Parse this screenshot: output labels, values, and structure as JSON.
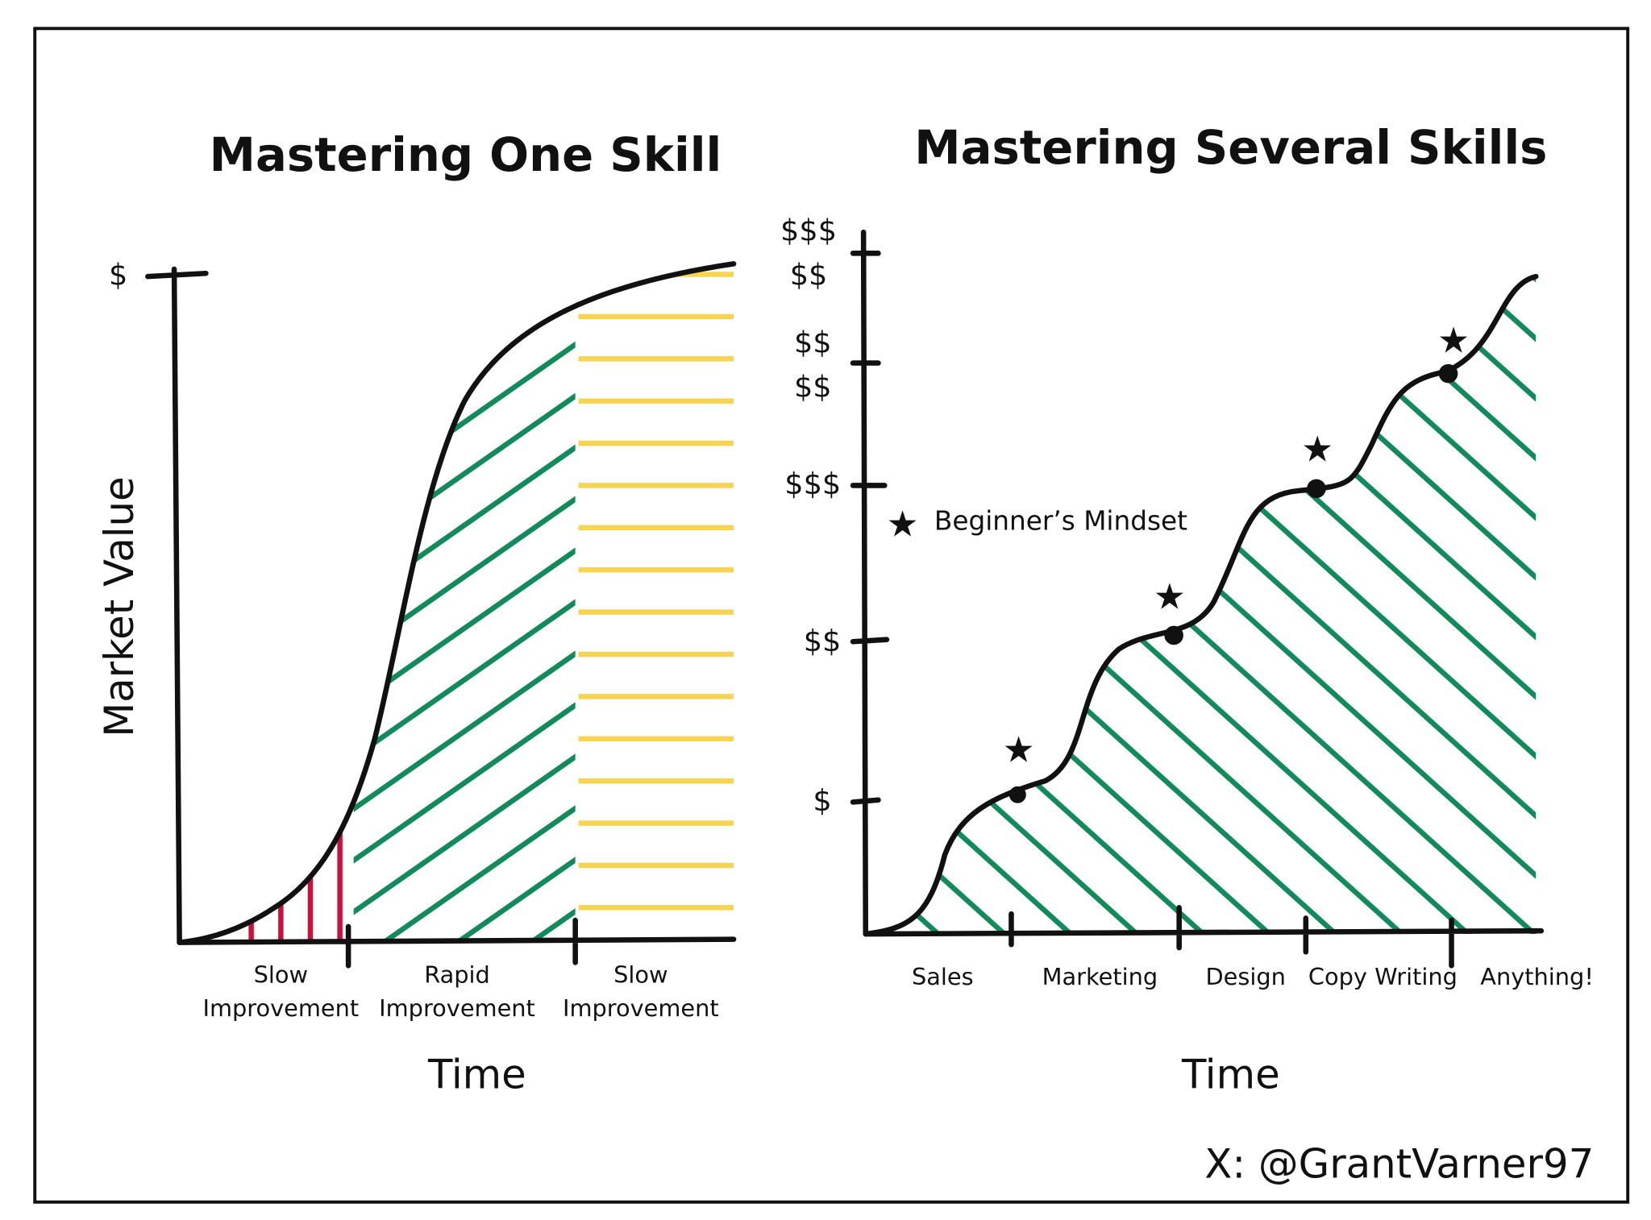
{
  "left": {
    "title": "Mastering One Skill",
    "y_label": "Market Value",
    "y_top": "$",
    "phases": [
      [
        "Slow",
        "Improvement"
      ],
      [
        "Rapid",
        "Improvement"
      ],
      [
        "Slow",
        "Improvement"
      ]
    ],
    "x_label": "Time"
  },
  "right": {
    "title": "Mastering Several Skills",
    "y_labels": [
      [
        "$$$",
        "$$"
      ],
      [
        "$$",
        "$$"
      ],
      [
        "$$$"
      ],
      [
        "$$"
      ],
      [
        "$"
      ]
    ],
    "legend": "Beginner’s Mindset",
    "categories": [
      "Sales",
      "Marketing",
      "Design",
      "Copy Writing",
      "Anything!"
    ],
    "x_label": "Time"
  },
  "credit": "X: @GrantVarner97"
}
